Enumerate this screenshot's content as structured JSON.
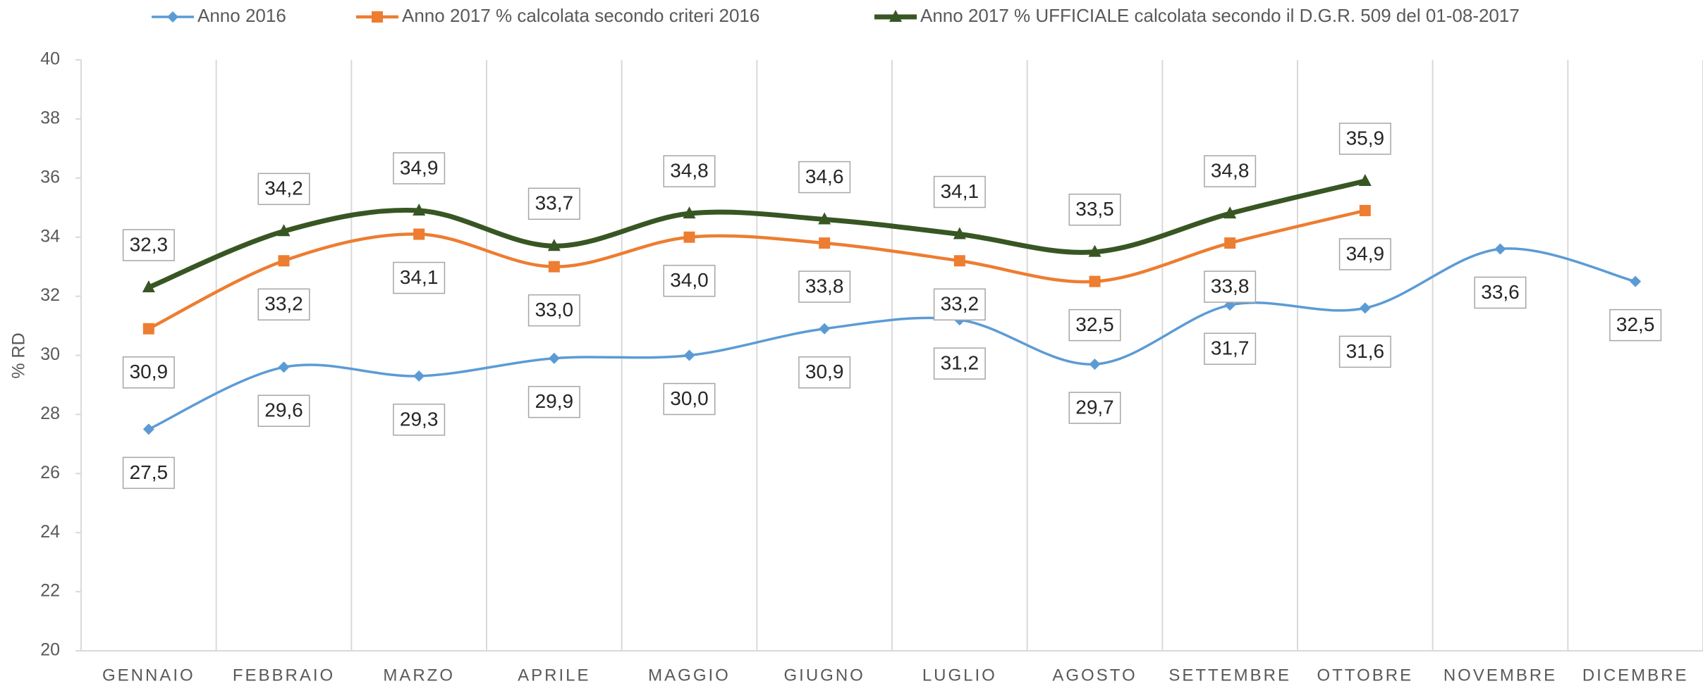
{
  "chart_data": {
    "type": "line",
    "categories": [
      "GENNAIO",
      "FEBBRAIO",
      "MARZO",
      "APRILE",
      "MAGGIO",
      "GIUGNO",
      "LUGLIO",
      "AGOSTO",
      "SETTEMBRE",
      "OTTOBRE",
      "NOVEMBRE",
      "DICEMBRE"
    ],
    "y_label": "% RD",
    "ylim": [
      20,
      40
    ],
    "yticks": [
      20,
      22,
      24,
      26,
      28,
      30,
      32,
      34,
      36,
      38,
      40
    ],
    "grid": true,
    "legend": "top",
    "smooth": true,
    "series": [
      {
        "name": "Anno 2016",
        "color": "#5b9bd5",
        "marker": "diamond",
        "label_position": "below",
        "values": [
          27.5,
          29.6,
          29.3,
          29.9,
          30.0,
          30.9,
          31.2,
          29.7,
          31.7,
          31.6,
          33.6,
          32.5
        ],
        "value_labels": [
          "27,5",
          "29,6",
          "29,3",
          "29,9",
          "30,0",
          "30,9",
          "31,2",
          "29,7",
          "31,7",
          "31,6",
          "33,6",
          "32,5"
        ]
      },
      {
        "name": "Anno 2017 % calcolata secondo criteri 2016",
        "color": "#ed7d31",
        "marker": "square",
        "label_position": "below",
        "values": [
          30.9,
          33.2,
          34.1,
          33.0,
          34.0,
          33.8,
          33.2,
          32.5,
          33.8,
          34.9,
          null,
          null
        ],
        "value_labels": [
          "30,9",
          "33,2",
          "34,1",
          "33,0",
          "34,0",
          "33,8",
          "33,2",
          "32,5",
          "33,8",
          "34,9",
          null,
          null
        ]
      },
      {
        "name": "Anno 2017 % UFFICIALE calcolata secondo il D.G.R. 509 del 01-08-2017",
        "color": "#375623",
        "marker": "triangle",
        "label_position": "above",
        "values": [
          32.3,
          34.2,
          34.9,
          33.7,
          34.8,
          34.6,
          34.1,
          33.5,
          34.8,
          35.9,
          null,
          null
        ],
        "value_labels": [
          "32,3",
          "34,2",
          "34,9",
          "33,7",
          "34,8",
          "34,6",
          "34,1",
          "33,5",
          "34,8",
          "35,9",
          null,
          null
        ]
      }
    ]
  }
}
